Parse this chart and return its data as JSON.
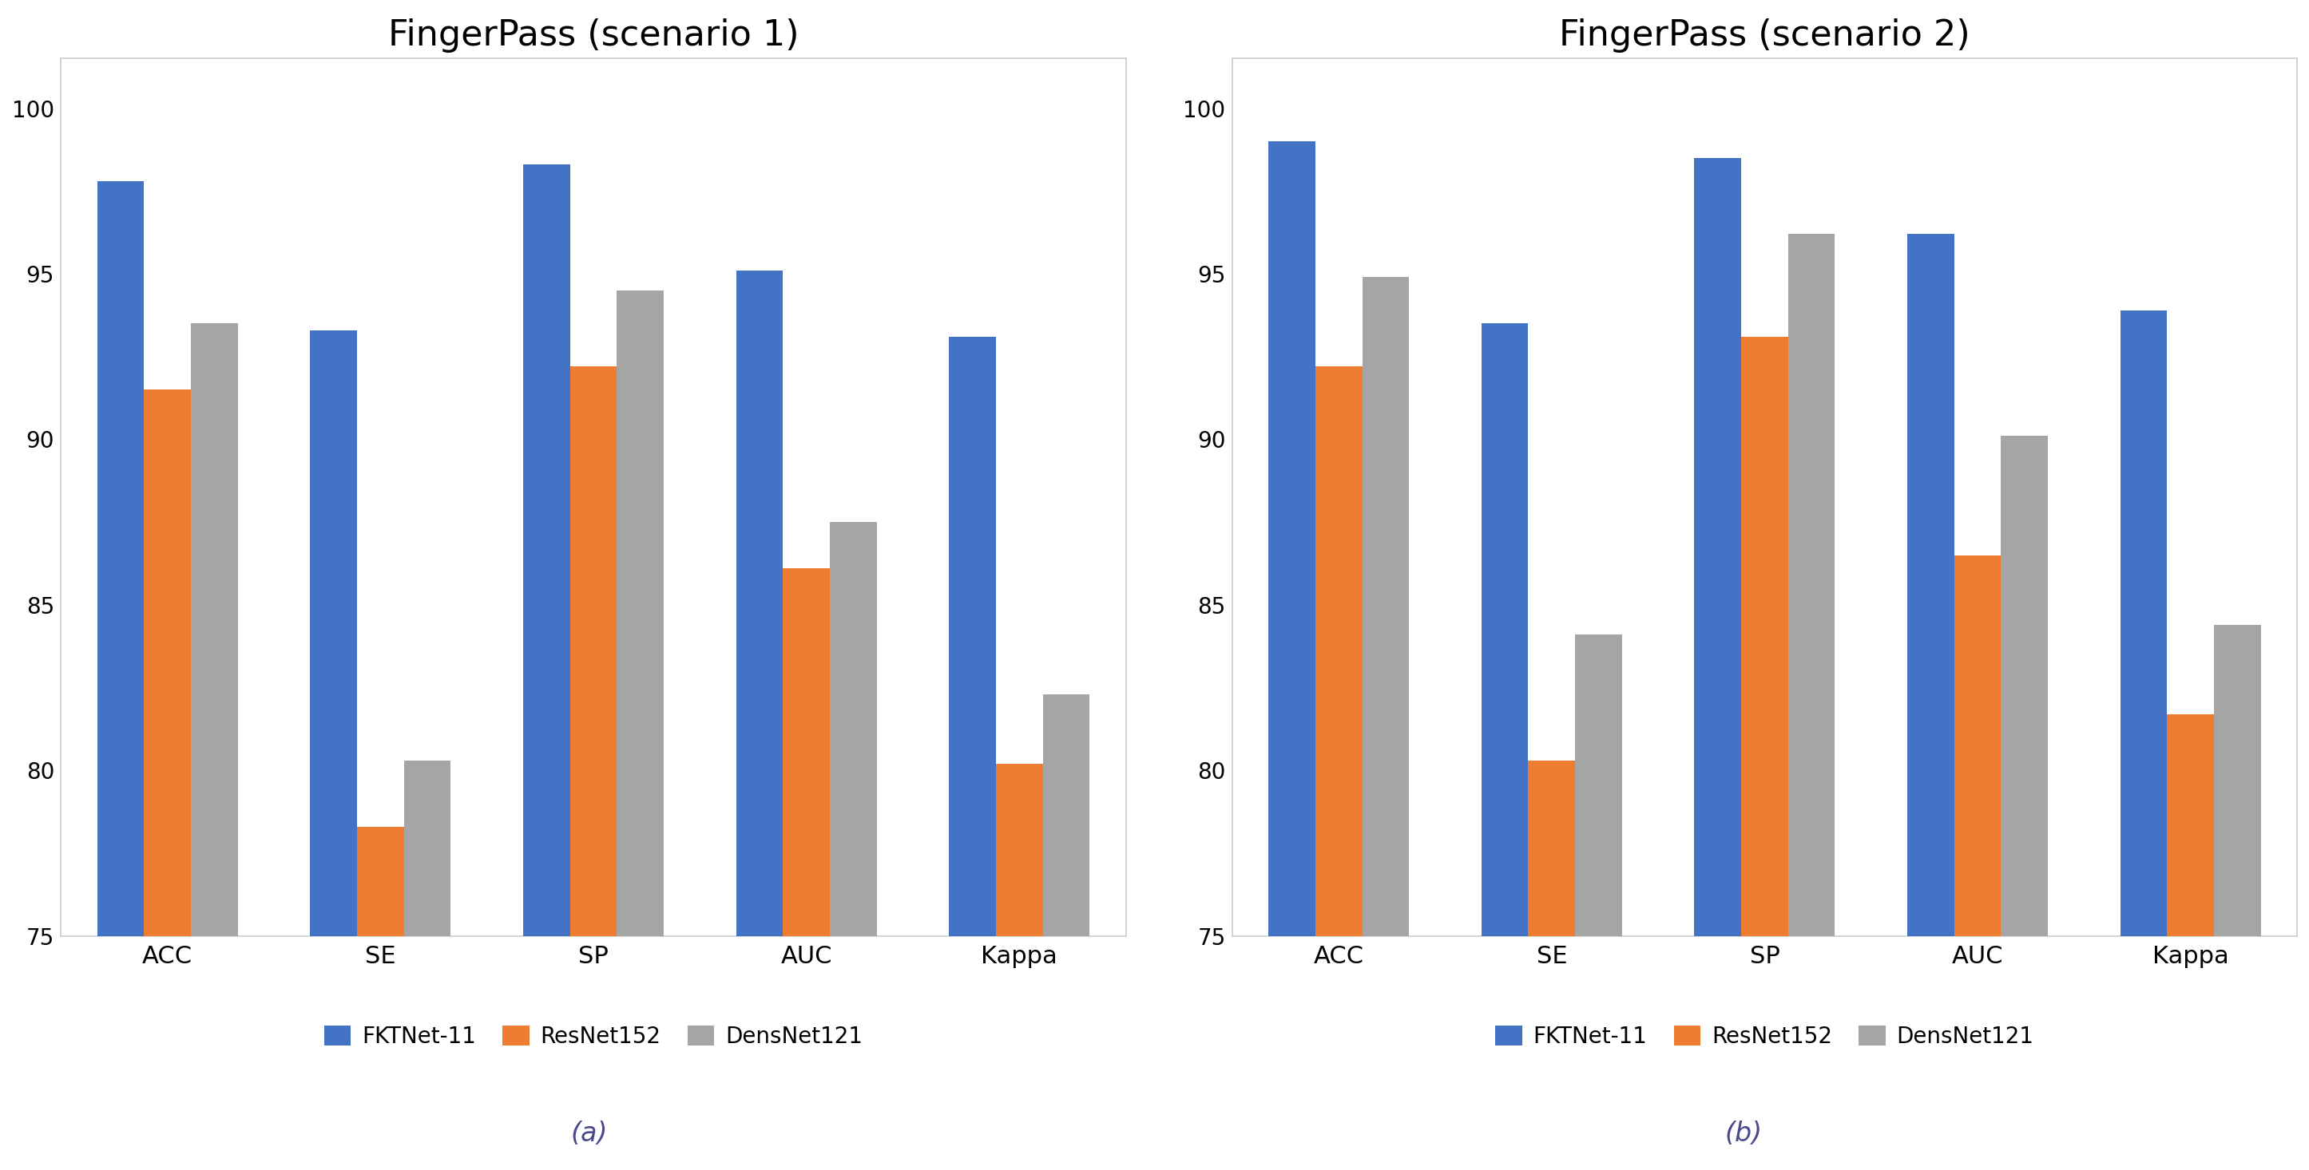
{
  "scenario1": {
    "title": "FingerPass (scenario 1)",
    "categories": [
      "ACC",
      "SE",
      "SP",
      "AUC",
      "Kappa"
    ],
    "FKTNet11": [
      97.8,
      93.3,
      98.3,
      95.1,
      93.1
    ],
    "ResNet152": [
      91.5,
      78.3,
      92.2,
      86.1,
      80.2
    ],
    "DensNet121": [
      93.5,
      80.3,
      94.5,
      87.5,
      82.3
    ]
  },
  "scenario2": {
    "title": "FingerPass (scenario 2)",
    "categories": [
      "ACC",
      "SE",
      "SP",
      "AUC",
      "Kappa"
    ],
    "FKTNet11": [
      99.0,
      93.5,
      98.5,
      96.2,
      93.9
    ],
    "ResNet152": [
      92.2,
      80.3,
      93.1,
      86.5,
      81.7
    ],
    "DensNet121": [
      94.9,
      84.1,
      96.2,
      90.1,
      84.4
    ]
  },
  "colors": {
    "FKTNet11": "#4472C4",
    "ResNet152": "#ED7D31",
    "DensNet121": "#A5A5A5"
  },
  "legend_labels": [
    "FKTNet-11",
    "ResNet152",
    "DensNet121"
  ],
  "ylim": [
    75,
    101.5
  ],
  "yticks": [
    75,
    80,
    85,
    90,
    95,
    100
  ],
  "caption_a": "(a)",
  "caption_b": "(b)",
  "bar_width": 0.22,
  "background_color": "#ffffff"
}
